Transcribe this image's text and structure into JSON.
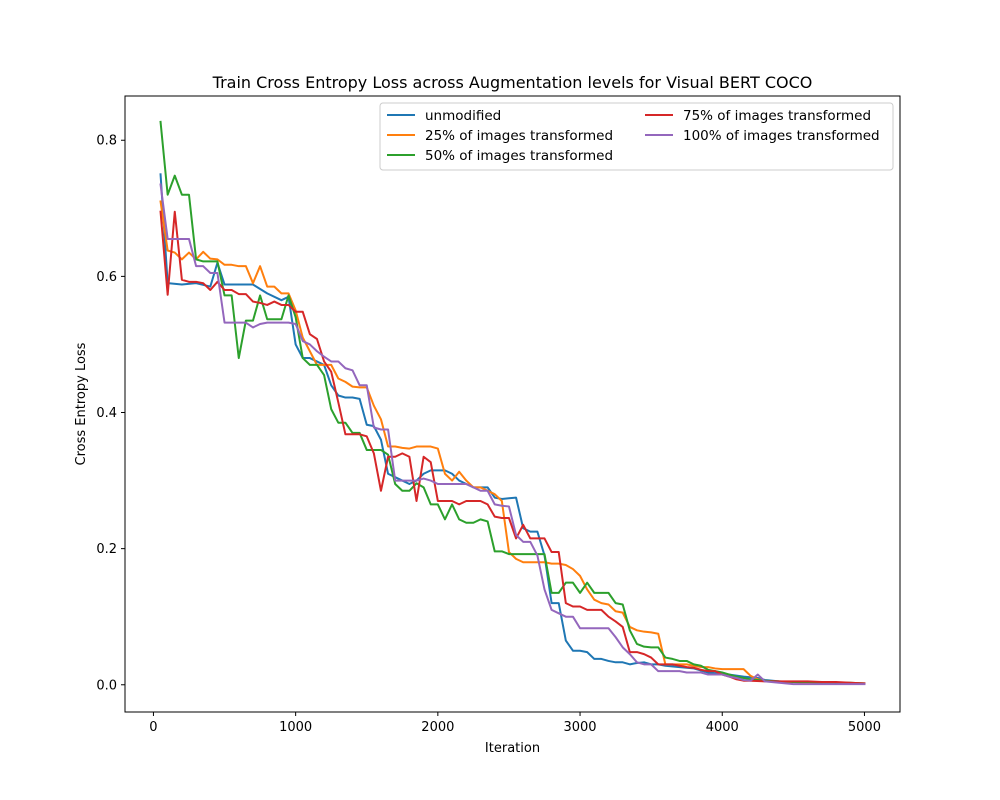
{
  "chart_data": {
    "type": "line",
    "title": "Train Cross Entropy Loss across Augmentation levels for Visual BERT COCO",
    "xlabel": "Iteration",
    "ylabel": "Cross Entropy Loss",
    "xlim": [
      -200,
      5250
    ],
    "ylim": [
      -0.04,
      0.865
    ],
    "xticks": [
      0,
      1000,
      2000,
      3000,
      4000,
      5000
    ],
    "yticks": [
      0.0,
      0.2,
      0.4,
      0.6,
      0.8
    ],
    "ytick_labels": [
      "0.0",
      "0.2",
      "0.4",
      "0.6",
      "0.8"
    ],
    "grid": false,
    "legend": {
      "placement": "top-right",
      "columns": 2
    },
    "series": [
      {
        "name": "unmodified",
        "color": "#1f77b4",
        "x": [
          50,
          100,
          200,
          300,
          400,
          450,
          500,
          600,
          700,
          800,
          900,
          950,
          1000,
          1050,
          1100,
          1200,
          1250,
          1300,
          1350,
          1400,
          1450,
          1500,
          1550,
          1600,
          1650,
          1700,
          1750,
          1800,
          1850,
          1900,
          1950,
          2000,
          2050,
          2100,
          2150,
          2200,
          2250,
          2300,
          2350,
          2400,
          2450,
          2500,
          2550,
          2600,
          2650,
          2700,
          2750,
          2800,
          2850,
          2900,
          2950,
          3000,
          3050,
          3100,
          3150,
          3200,
          3250,
          3300,
          3350,
          3400,
          3450,
          3500,
          3550,
          3600,
          3700,
          3800,
          3900,
          4000,
          4050,
          4150,
          4250,
          4300,
          4400,
          4500,
          4600,
          4700,
          4800,
          4900,
          5000
        ],
        "y": [
          0.75,
          0.59,
          0.588,
          0.59,
          0.585,
          0.62,
          0.588,
          0.588,
          0.588,
          0.575,
          0.565,
          0.57,
          0.5,
          0.48,
          0.48,
          0.47,
          0.44,
          0.425,
          0.422,
          0.422,
          0.42,
          0.382,
          0.38,
          0.36,
          0.31,
          0.305,
          0.3,
          0.295,
          0.3,
          0.31,
          0.315,
          0.315,
          0.315,
          0.31,
          0.3,
          0.295,
          0.29,
          0.29,
          0.29,
          0.275,
          0.273,
          0.274,
          0.275,
          0.23,
          0.225,
          0.225,
          0.19,
          0.12,
          0.12,
          0.065,
          0.05,
          0.05,
          0.048,
          0.038,
          0.038,
          0.035,
          0.033,
          0.033,
          0.03,
          0.032,
          0.033,
          0.03,
          0.03,
          0.028,
          0.026,
          0.024,
          0.018,
          0.016,
          0.015,
          0.012,
          0.01,
          0.007,
          0.005,
          0.004,
          0.003,
          0.003,
          0.002,
          0.002,
          0.002
        ]
      },
      {
        "name": "25% of images transformed",
        "color": "#ff7f0e",
        "x": [
          50,
          100,
          150,
          200,
          250,
          300,
          350,
          400,
          450,
          500,
          550,
          600,
          650,
          700,
          750,
          800,
          850,
          900,
          950,
          1000,
          1050,
          1100,
          1150,
          1200,
          1250,
          1300,
          1350,
          1400,
          1450,
          1500,
          1550,
          1600,
          1650,
          1700,
          1750,
          1800,
          1850,
          1900,
          1950,
          2000,
          2050,
          2100,
          2150,
          2200,
          2250,
          2300,
          2350,
          2400,
          2450,
          2500,
          2550,
          2600,
          2650,
          2700,
          2750,
          2800,
          2850,
          2900,
          2950,
          3000,
          3050,
          3100,
          3150,
          3200,
          3250,
          3300,
          3350,
          3400,
          3450,
          3500,
          3550,
          3600,
          3650,
          3700,
          3750,
          3800,
          3850,
          3900,
          3950,
          4000,
          4050,
          4100,
          4150,
          4200,
          4250,
          4300,
          4400,
          4500,
          4600,
          4700,
          4800,
          4900,
          5000
        ],
        "y": [
          0.71,
          0.638,
          0.635,
          0.625,
          0.635,
          0.625,
          0.636,
          0.626,
          0.625,
          0.617,
          0.617,
          0.615,
          0.615,
          0.59,
          0.615,
          0.585,
          0.585,
          0.575,
          0.575,
          0.55,
          0.51,
          0.49,
          0.47,
          0.47,
          0.47,
          0.45,
          0.445,
          0.438,
          0.437,
          0.437,
          0.41,
          0.39,
          0.35,
          0.35,
          0.348,
          0.347,
          0.35,
          0.35,
          0.35,
          0.347,
          0.31,
          0.3,
          0.313,
          0.3,
          0.29,
          0.29,
          0.285,
          0.28,
          0.27,
          0.195,
          0.185,
          0.18,
          0.18,
          0.18,
          0.18,
          0.178,
          0.178,
          0.176,
          0.17,
          0.16,
          0.14,
          0.125,
          0.12,
          0.118,
          0.108,
          0.106,
          0.085,
          0.08,
          0.078,
          0.077,
          0.075,
          0.03,
          0.03,
          0.03,
          0.03,
          0.028,
          0.026,
          0.026,
          0.024,
          0.023,
          0.023,
          0.023,
          0.023,
          0.013,
          0.008,
          0.006,
          0.004,
          0.004,
          0.003,
          0.003,
          0.002,
          0.002,
          0.002
        ]
      },
      {
        "name": "50% of images transformed",
        "color": "#2ca02c",
        "x": [
          50,
          100,
          150,
          200,
          250,
          300,
          350,
          400,
          450,
          500,
          550,
          600,
          650,
          700,
          750,
          800,
          850,
          900,
          950,
          1000,
          1050,
          1100,
          1150,
          1200,
          1250,
          1300,
          1350,
          1400,
          1450,
          1500,
          1550,
          1600,
          1650,
          1700,
          1750,
          1800,
          1850,
          1900,
          1950,
          2000,
          2050,
          2100,
          2150,
          2200,
          2250,
          2300,
          2350,
          2400,
          2450,
          2500,
          2550,
          2600,
          2650,
          2700,
          2750,
          2800,
          2850,
          2900,
          2950,
          3000,
          3050,
          3100,
          3150,
          3200,
          3250,
          3300,
          3350,
          3400,
          3450,
          3500,
          3550,
          3600,
          3650,
          3700,
          3750,
          3800,
          3850,
          3900,
          3950,
          4000,
          4050,
          4100,
          4150,
          4200,
          4300,
          4400,
          4500,
          4600,
          4700,
          4800,
          4900,
          5000
        ],
        "y": [
          0.827,
          0.72,
          0.748,
          0.72,
          0.72,
          0.625,
          0.622,
          0.622,
          0.622,
          0.572,
          0.572,
          0.48,
          0.535,
          0.535,
          0.572,
          0.537,
          0.537,
          0.537,
          0.572,
          0.54,
          0.48,
          0.47,
          0.47,
          0.455,
          0.405,
          0.385,
          0.385,
          0.37,
          0.37,
          0.345,
          0.345,
          0.345,
          0.338,
          0.295,
          0.285,
          0.285,
          0.296,
          0.29,
          0.265,
          0.265,
          0.243,
          0.265,
          0.243,
          0.238,
          0.238,
          0.243,
          0.24,
          0.196,
          0.196,
          0.192,
          0.192,
          0.192,
          0.192,
          0.192,
          0.192,
          0.135,
          0.135,
          0.15,
          0.15,
          0.135,
          0.15,
          0.135,
          0.135,
          0.135,
          0.12,
          0.118,
          0.08,
          0.06,
          0.056,
          0.055,
          0.055,
          0.04,
          0.038,
          0.035,
          0.035,
          0.03,
          0.028,
          0.022,
          0.02,
          0.018,
          0.015,
          0.012,
          0.01,
          0.008,
          0.006,
          0.005,
          0.004,
          0.004,
          0.003,
          0.003,
          0.003,
          0.002
        ]
      },
      {
        "name": "75% of images transformed",
        "color": "#d62728",
        "x": [
          50,
          100,
          150,
          200,
          250,
          300,
          350,
          400,
          450,
          500,
          550,
          600,
          650,
          700,
          750,
          800,
          850,
          900,
          950,
          1000,
          1050,
          1100,
          1150,
          1200,
          1250,
          1300,
          1350,
          1400,
          1450,
          1500,
          1550,
          1600,
          1650,
          1700,
          1750,
          1800,
          1850,
          1900,
          1950,
          2000,
          2050,
          2100,
          2150,
          2200,
          2250,
          2300,
          2350,
          2400,
          2450,
          2500,
          2550,
          2600,
          2650,
          2700,
          2750,
          2800,
          2850,
          2900,
          2950,
          3000,
          3050,
          3100,
          3150,
          3200,
          3250,
          3300,
          3350,
          3400,
          3450,
          3500,
          3550,
          3600,
          3650,
          3700,
          3750,
          3800,
          3850,
          3900,
          3950,
          4000,
          4050,
          4100,
          4150,
          4200,
          4300,
          4400,
          4500,
          4600,
          4700,
          4800,
          4900,
          5000
        ],
        "y": [
          0.695,
          0.573,
          0.695,
          0.595,
          0.592,
          0.592,
          0.59,
          0.58,
          0.592,
          0.58,
          0.58,
          0.574,
          0.574,
          0.563,
          0.561,
          0.558,
          0.563,
          0.558,
          0.558,
          0.548,
          0.548,
          0.515,
          0.508,
          0.475,
          0.46,
          0.415,
          0.368,
          0.368,
          0.368,
          0.365,
          0.34,
          0.285,
          0.335,
          0.335,
          0.34,
          0.335,
          0.27,
          0.335,
          0.327,
          0.27,
          0.27,
          0.27,
          0.265,
          0.27,
          0.27,
          0.27,
          0.265,
          0.247,
          0.245,
          0.245,
          0.215,
          0.235,
          0.215,
          0.215,
          0.215,
          0.195,
          0.195,
          0.12,
          0.115,
          0.115,
          0.11,
          0.11,
          0.11,
          0.1,
          0.093,
          0.085,
          0.048,
          0.048,
          0.045,
          0.04,
          0.03,
          0.03,
          0.03,
          0.028,
          0.026,
          0.025,
          0.022,
          0.02,
          0.02,
          0.015,
          0.012,
          0.008,
          0.006,
          0.006,
          0.005,
          0.005,
          0.005,
          0.005,
          0.004,
          0.004,
          0.003,
          0.002
        ]
      },
      {
        "name": "100% of images transformed",
        "color": "#9467bd",
        "x": [
          50,
          100,
          150,
          200,
          250,
          300,
          350,
          400,
          450,
          500,
          550,
          600,
          650,
          700,
          750,
          800,
          850,
          900,
          950,
          1000,
          1050,
          1100,
          1150,
          1200,
          1250,
          1300,
          1350,
          1400,
          1450,
          1500,
          1550,
          1600,
          1650,
          1700,
          1750,
          1800,
          1850,
          1900,
          1950,
          2000,
          2050,
          2100,
          2150,
          2200,
          2250,
          2300,
          2350,
          2400,
          2450,
          2500,
          2550,
          2600,
          2650,
          2700,
          2750,
          2800,
          2850,
          2900,
          2950,
          3000,
          3050,
          3100,
          3150,
          3200,
          3250,
          3300,
          3350,
          3400,
          3450,
          3500,
          3550,
          3600,
          3650,
          3700,
          3750,
          3800,
          3850,
          3900,
          3950,
          4000,
          4050,
          4100,
          4150,
          4200,
          4250,
          4300,
          4400,
          4500,
          4600,
          4700,
          4800,
          4900,
          5000
        ],
        "y": [
          0.735,
          0.655,
          0.655,
          0.655,
          0.655,
          0.615,
          0.615,
          0.605,
          0.605,
          0.532,
          0.532,
          0.532,
          0.532,
          0.525,
          0.53,
          0.532,
          0.532,
          0.532,
          0.532,
          0.53,
          0.505,
          0.5,
          0.49,
          0.482,
          0.475,
          0.475,
          0.465,
          0.462,
          0.44,
          0.44,
          0.378,
          0.375,
          0.375,
          0.3,
          0.3,
          0.3,
          0.3,
          0.303,
          0.3,
          0.295,
          0.295,
          0.295,
          0.295,
          0.295,
          0.29,
          0.285,
          0.285,
          0.265,
          0.263,
          0.262,
          0.22,
          0.21,
          0.21,
          0.19,
          0.14,
          0.11,
          0.105,
          0.1,
          0.1,
          0.083,
          0.083,
          0.083,
          0.083,
          0.083,
          0.07,
          0.055,
          0.045,
          0.033,
          0.03,
          0.03,
          0.02,
          0.02,
          0.02,
          0.02,
          0.018,
          0.018,
          0.018,
          0.015,
          0.015,
          0.015,
          0.012,
          0.01,
          0.007,
          0.006,
          0.015,
          0.005,
          0.003,
          0.001,
          0.001,
          0.001,
          0.001,
          0.001,
          0.001
        ]
      }
    ]
  }
}
